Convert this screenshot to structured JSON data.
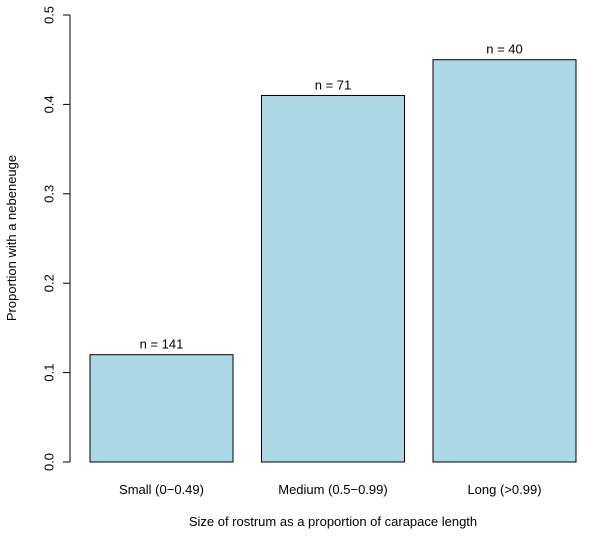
{
  "chart_data": {
    "type": "bar",
    "title": "",
    "xlabel": "Size of rostrum as a proportion of carapace length",
    "ylabel": "Proportion with a nebeneuge",
    "categories": [
      "Small (0−0.49)",
      "Medium (0.5−0.99)",
      "Long (>0.99)"
    ],
    "values": [
      0.12,
      0.41,
      0.45
    ],
    "bar_labels": [
      "n = 141",
      "n = 71",
      "n = 40"
    ],
    "ylim": [
      0,
      0.5
    ],
    "yticks": [
      0.0,
      0.1,
      0.2,
      0.3,
      0.4,
      0.5
    ],
    "ytick_labels": [
      "0.0",
      "0.1",
      "0.2",
      "0.3",
      "0.4",
      "0.5"
    ],
    "grid": false,
    "legend": "none",
    "colors": {
      "bar_fill": "#add8e6",
      "bar_stroke": "#000000",
      "axis": "#000000"
    }
  }
}
